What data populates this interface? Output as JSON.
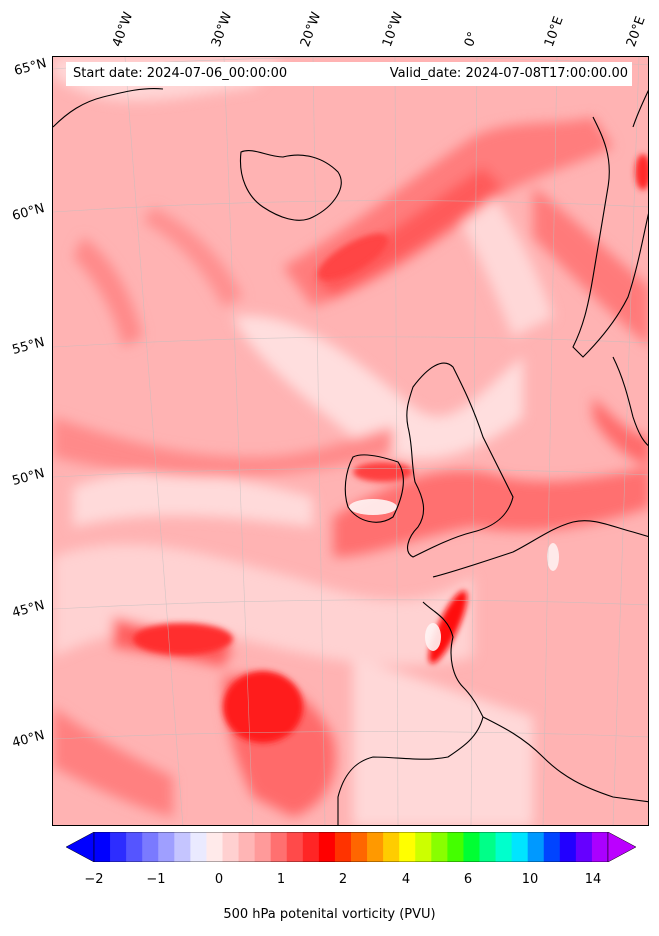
{
  "map": {
    "start_date": "Start date: 2024-07-06_00:00:00",
    "valid_date": "Valid_date: 2024-07-08T17:00:00.00",
    "longitude_labels": [
      "40°W",
      "30°W",
      "20°W",
      "10°W",
      "0°",
      "10°E",
      "20°E"
    ],
    "latitude_labels": [
      "65°N",
      "60°N",
      "55°N",
      "50°N",
      "45°N",
      "40°N"
    ],
    "field": "500 hPa potential vorticity",
    "region": "North Atlantic and Western Europe"
  },
  "colorbar": {
    "title": "500 hPa potenital vorticity (PVU)",
    "tick_labels": [
      "−2",
      "−1",
      "0",
      "1",
      "2",
      "4",
      "6",
      "10",
      "14"
    ],
    "colors": [
      "#0000ff",
      "#2d2dff",
      "#5555ff",
      "#7a7aff",
      "#9f9fff",
      "#c5c5ff",
      "#eaeaff",
      "#ffeaea",
      "#ffd0d0",
      "#ffb5b5",
      "#ff9a9a",
      "#ff7070",
      "#ff4a4a",
      "#ff2525",
      "#ff0000",
      "#ff3300",
      "#ff6600",
      "#ff9900",
      "#ffcc00",
      "#ffff00",
      "#ccff00",
      "#88ff00",
      "#44ff00",
      "#00ff33",
      "#00ff88",
      "#00ffcc",
      "#00e5ff",
      "#0099ff",
      "#0044ff",
      "#2200ff",
      "#6600ff",
      "#aa00ff"
    ],
    "extend_low_color": "#0000ff",
    "extend_high_color": "#bb00ff"
  }
}
